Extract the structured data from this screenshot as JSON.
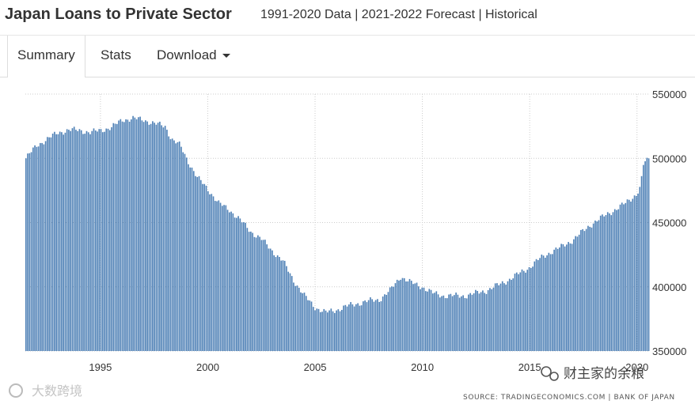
{
  "header": {
    "title": "Japan Loans to Private Sector",
    "subtitle": "1991-2020 Data | 2021-2022 Forecast | Historical"
  },
  "tabs": [
    {
      "label": "Summary",
      "active": true
    },
    {
      "label": "Stats",
      "active": false
    },
    {
      "label": "Download",
      "active": false
    }
  ],
  "colors": {
    "bar": "#4f81b6",
    "grid": "#cccccc",
    "text": "#333333"
  },
  "watermark": {
    "left_text": "大数跨境",
    "right_text": "财主家的余粮"
  },
  "source_text": "SOURCE: TRADINGECONOMICS.COM | BANK OF JAPAN",
  "chart_data": {
    "type": "bar",
    "title": "Japan Loans to Private Sector",
    "frequency": "monthly",
    "xlim": [
      1991.5,
      2020.6
    ],
    "ylim": [
      350000,
      550000
    ],
    "yticks": [
      350000,
      400000,
      450000,
      500000,
      550000
    ],
    "ytick_labels": [
      "350000",
      "400000",
      "450000",
      "500000",
      "550000"
    ],
    "xticks": [
      1995,
      2000,
      2005,
      2010,
      2015,
      2020
    ],
    "xtick_labels": [
      "1995",
      "2000",
      "2005",
      "2010",
      "2015",
      "2020"
    ],
    "series": [
      {
        "name": "Loans to Private Sector",
        "start": 1991.5,
        "step": 0.08333,
        "anchors": [
          [
            1991.5,
            500000
          ],
          [
            1992.0,
            510000
          ],
          [
            1992.5,
            515000
          ],
          [
            1993.0,
            520000
          ],
          [
            1993.5,
            522000
          ],
          [
            1994.0,
            522000
          ],
          [
            1994.5,
            520000
          ],
          [
            1995.0,
            522000
          ],
          [
            1995.5,
            524000
          ],
          [
            1996.0,
            530000
          ],
          [
            1996.5,
            531000
          ],
          [
            1997.0,
            530000
          ],
          [
            1997.5,
            527000
          ],
          [
            1998.0,
            525000
          ],
          [
            1998.3,
            515000
          ],
          [
            1998.7,
            510000
          ],
          [
            1999.0,
            500000
          ],
          [
            1999.5,
            485000
          ],
          [
            2000.0,
            476000
          ],
          [
            2000.5,
            465000
          ],
          [
            2001.0,
            460000
          ],
          [
            2001.5,
            452000
          ],
          [
            2002.0,
            443000
          ],
          [
            2002.5,
            437000
          ],
          [
            2003.0,
            428000
          ],
          [
            2003.5,
            420000
          ],
          [
            2004.0,
            405000
          ],
          [
            2004.5,
            393000
          ],
          [
            2005.0,
            384000
          ],
          [
            2005.5,
            380000
          ],
          [
            2006.0,
            382000
          ],
          [
            2006.5,
            385000
          ],
          [
            2007.0,
            387000
          ],
          [
            2007.5,
            389000
          ],
          [
            2008.0,
            390000
          ],
          [
            2008.5,
            397000
          ],
          [
            2009.0,
            408000
          ],
          [
            2009.5,
            403000
          ],
          [
            2010.0,
            400000
          ],
          [
            2010.5,
            395000
          ],
          [
            2011.0,
            393000
          ],
          [
            2011.5,
            393000
          ],
          [
            2012.0,
            393000
          ],
          [
            2012.5,
            395000
          ],
          [
            2013.0,
            397000
          ],
          [
            2013.5,
            401000
          ],
          [
            2014.0,
            405000
          ],
          [
            2014.5,
            410000
          ],
          [
            2015.0,
            415000
          ],
          [
            2015.5,
            422000
          ],
          [
            2016.0,
            427000
          ],
          [
            2016.5,
            431000
          ],
          [
            2017.0,
            436000
          ],
          [
            2017.5,
            443000
          ],
          [
            2018.0,
            450000
          ],
          [
            2018.5,
            455000
          ],
          [
            2019.0,
            460000
          ],
          [
            2019.5,
            465000
          ],
          [
            2020.0,
            472000
          ],
          [
            2020.2,
            478000
          ],
          [
            2020.35,
            497000
          ],
          [
            2020.6,
            499000
          ]
        ]
      }
    ]
  }
}
